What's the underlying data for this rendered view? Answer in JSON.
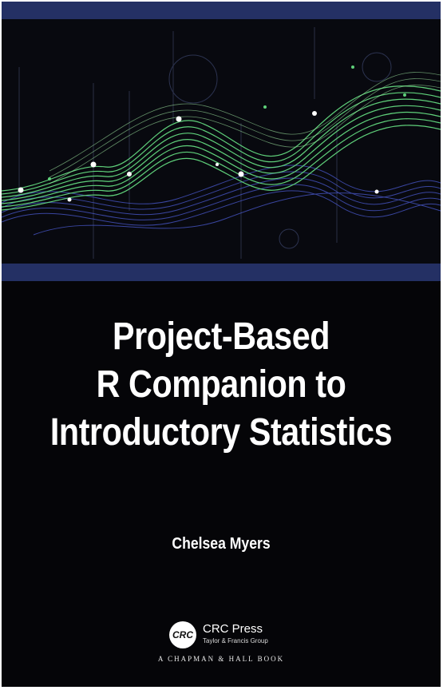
{
  "cover": {
    "title_lines": [
      "Project-Based",
      "R Companion to",
      "Introductory Statistics"
    ],
    "author": "Chelsea Myers",
    "publisher": {
      "name": "CRC Press",
      "subtitle": "Taylor & Francis Group",
      "logo_text": "CRC",
      "imprint": "A CHAPMAN & HALL BOOK"
    }
  },
  "colors": {
    "background": "#050508",
    "band": "#243064",
    "green_waves": "#5fd07a",
    "blue_waves": "#4a5ad0",
    "text": "#ffffff"
  }
}
